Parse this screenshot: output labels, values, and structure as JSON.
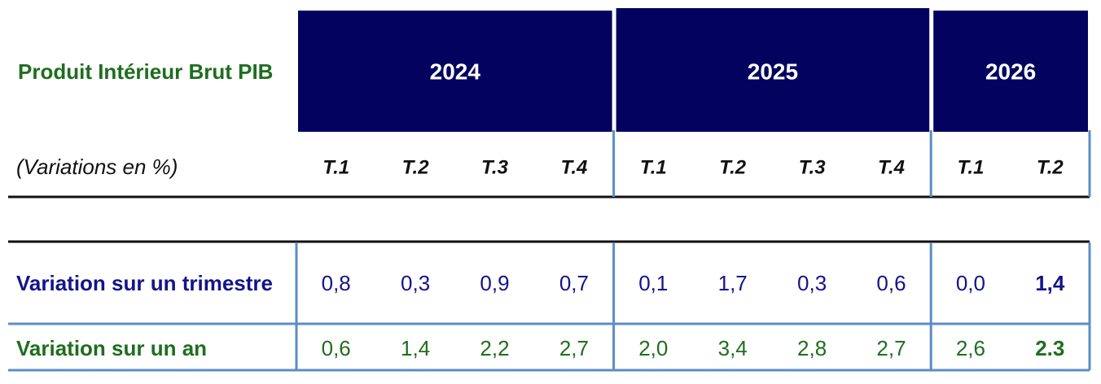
{
  "header": {
    "title": "Produit Intérieur Brut PIB",
    "subtitle": "(Variations en %)"
  },
  "years": [
    {
      "year": "2024",
      "quarters": [
        "T.1",
        "T.2",
        "T.3",
        "T.4"
      ]
    },
    {
      "year": "2025",
      "quarters": [
        "T.1",
        "T.2",
        "T.3",
        "T.4"
      ]
    },
    {
      "year": "2026",
      "quarters": [
        "T.1",
        "T.2"
      ]
    }
  ],
  "rows": [
    {
      "label": "Variation sur un trimestre",
      "color": "#14148c",
      "values": [
        "0,8",
        "0,3",
        "0,9",
        "0,7",
        "0,1",
        "1,7",
        "0,3",
        "0,6",
        "0,0",
        "1,4"
      ]
    },
    {
      "label": "Variation sur un an",
      "color": "#1e6e1e",
      "values": [
        "0,6",
        "1,4",
        "2,2",
        "2,7",
        "2,0",
        "3,4",
        "2,8",
        "2,7",
        "2,6",
        "2.3"
      ]
    }
  ]
}
